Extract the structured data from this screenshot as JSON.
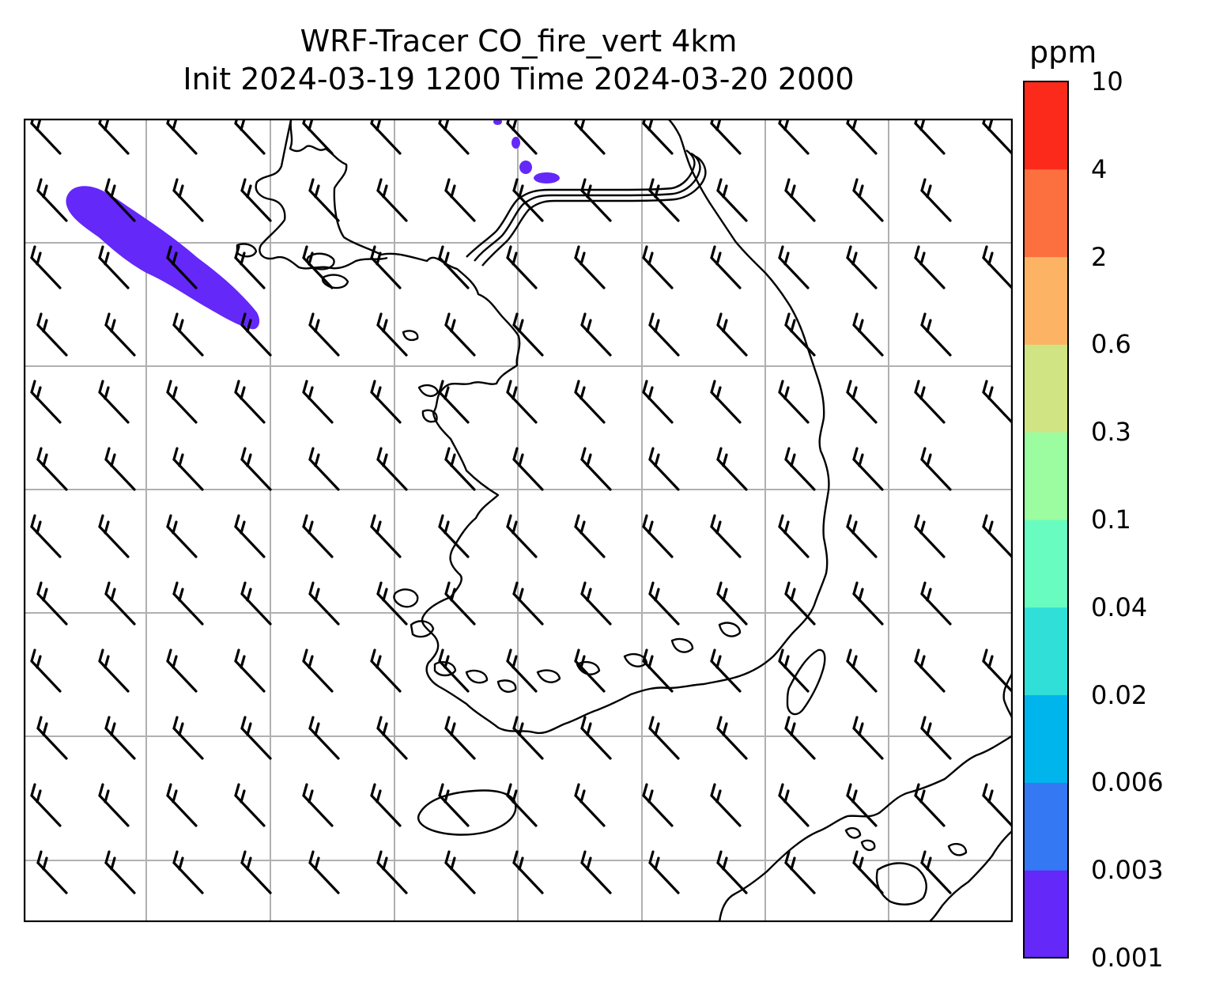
{
  "title": {
    "line1": "WRF-Tracer CO_fire_vert 4km",
    "line2": "Init 2024-03-19 1200 Time 2024-03-20 2000"
  },
  "colorbar": {
    "unit": "ppm",
    "ticks": [
      "0.001",
      "0.003",
      "0.006",
      "0.02",
      "0.04",
      "0.1",
      "0.3",
      "0.6",
      "2",
      "4",
      "10"
    ],
    "colors": [
      "#6428f8",
      "#3478f4",
      "#00b4ec",
      "#30e0d8",
      "#68fcc0",
      "#9cfca0",
      "#d0e484",
      "#fcb464",
      "#fc7040",
      "#fc2a1a"
    ]
  },
  "map": {
    "plume_color": "#6428f8",
    "grid_color": "#b0b0b0",
    "coast_color": "#000000",
    "barb_color": "#000000"
  }
}
